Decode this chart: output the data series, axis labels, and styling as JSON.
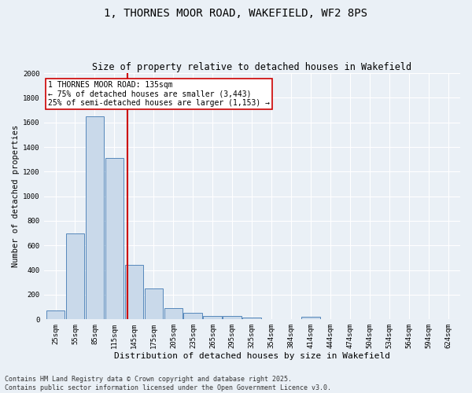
{
  "title": "1, THORNES MOOR ROAD, WAKEFIELD, WF2 8PS",
  "subtitle": "Size of property relative to detached houses in Wakefield",
  "xlabel": "Distribution of detached houses by size in Wakefield",
  "ylabel": "Number of detached properties",
  "categories": [
    "25sqm",
    "55sqm",
    "85sqm",
    "115sqm",
    "145sqm",
    "175sqm",
    "205sqm",
    "235sqm",
    "265sqm",
    "295sqm",
    "325sqm",
    "354sqm",
    "384sqm",
    "414sqm",
    "444sqm",
    "474sqm",
    "504sqm",
    "534sqm",
    "564sqm",
    "594sqm",
    "624sqm"
  ],
  "values": [
    70,
    700,
    1650,
    1310,
    440,
    250,
    90,
    50,
    30,
    25,
    15,
    0,
    0,
    20,
    0,
    0,
    0,
    0,
    0,
    0,
    0
  ],
  "bar_color": "#c9d9ea",
  "bar_edge_color": "#5588bb",
  "red_line_color": "#cc0000",
  "annotation_text": "1 THORNES MOOR ROAD: 135sqm\n← 75% of detached houses are smaller (3,443)\n25% of semi-detached houses are larger (1,153) →",
  "annotation_box_color": "#ffffff",
  "annotation_border_color": "#cc0000",
  "footer_line1": "Contains HM Land Registry data © Crown copyright and database right 2025.",
  "footer_line2": "Contains public sector information licensed under the Open Government Licence v3.0.",
  "ylim": [
    0,
    2000
  ],
  "background_color": "#eaf0f6",
  "grid_color": "#ffffff",
  "title_fontsize": 10,
  "subtitle_fontsize": 8.5,
  "xlabel_fontsize": 8,
  "ylabel_fontsize": 7.5,
  "tick_fontsize": 6.5,
  "annotation_fontsize": 7,
  "footer_fontsize": 6
}
